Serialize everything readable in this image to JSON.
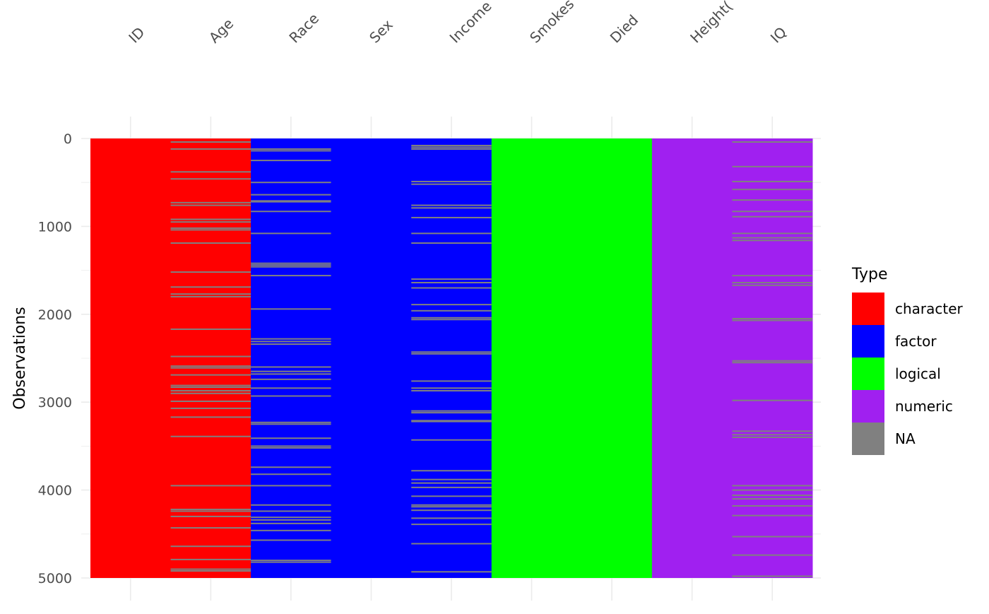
{
  "chart_data": {
    "type": "heatmap",
    "title": "",
    "xlabel": "",
    "ylabel": "Observations",
    "ylim": [
      0,
      5000
    ],
    "y_ticks": [
      "0",
      "1000",
      "2000",
      "3000",
      "4000",
      "5000"
    ],
    "grid": true,
    "legend_position": "right",
    "legend_title": "Type",
    "legend": [
      {
        "label": "character",
        "color": "#FF0000"
      },
      {
        "label": "factor",
        "color": "#0000FF"
      },
      {
        "label": "logical",
        "color": "#00FF00"
      },
      {
        "label": "numeric",
        "color": "#A020F0"
      },
      {
        "label": "NA",
        "color": "#808080"
      }
    ],
    "columns": [
      {
        "name": "ID",
        "type": "character",
        "na_rows": []
      },
      {
        "name": "Age",
        "type": "character",
        "na_rows": [
          40,
          120,
          380,
          460,
          730,
          760,
          920,
          950,
          1020,
          1040,
          1190,
          1520,
          1690,
          1770,
          1800,
          2170,
          2480,
          2590,
          2610,
          2690,
          2810,
          2830,
          2870,
          2900,
          2990,
          3070,
          3170,
          3390,
          3950,
          4220,
          4240,
          4300,
          4430,
          4640,
          4790,
          4900,
          4920
        ]
      },
      {
        "name": "Race",
        "type": "factor",
        "na_rows": [
          120,
          140,
          250,
          500,
          640,
          710,
          720,
          830,
          1080,
          1420,
          1440,
          1460,
          1560,
          1940,
          2280,
          2310,
          2340,
          2600,
          2650,
          2680,
          2740,
          2840,
          2930,
          3230,
          3250,
          3410,
          3500,
          3520,
          3740,
          3820,
          3950,
          4170,
          4240,
          4310,
          4340,
          4380,
          4460,
          4570,
          4800,
          4820
        ]
      },
      {
        "name": "Sex",
        "type": "factor",
        "na_rows": []
      },
      {
        "name": "Income",
        "type": "factor",
        "na_rows": [
          80,
          100,
          120,
          490,
          520,
          760,
          790,
          900,
          1080,
          1190,
          1600,
          1640,
          1700,
          1890,
          1960,
          2040,
          2060,
          2430,
          2450,
          2760,
          2840,
          2870,
          3100,
          3120,
          3210,
          3220,
          3430,
          3780,
          3880,
          3920,
          3970,
          4070,
          4170,
          4190,
          4230,
          4320,
          4390,
          4610,
          4930
        ]
      },
      {
        "name": "Smokes",
        "type": "logical",
        "na_rows": []
      },
      {
        "name": "Died",
        "type": "logical",
        "na_rows": []
      },
      {
        "name": "Height(",
        "type": "numeric",
        "na_rows": []
      },
      {
        "name": "IQ",
        "type": "numeric",
        "na_rows": [
          40,
          320,
          490,
          580,
          700,
          830,
          890,
          1080,
          1130,
          1160,
          1560,
          1640,
          1670,
          2050,
          2070,
          2530,
          2550,
          2980,
          3330,
          3370,
          3400,
          3950,
          4000,
          4060,
          4100,
          4180,
          4290,
          4530,
          4740,
          4980
        ]
      }
    ]
  }
}
